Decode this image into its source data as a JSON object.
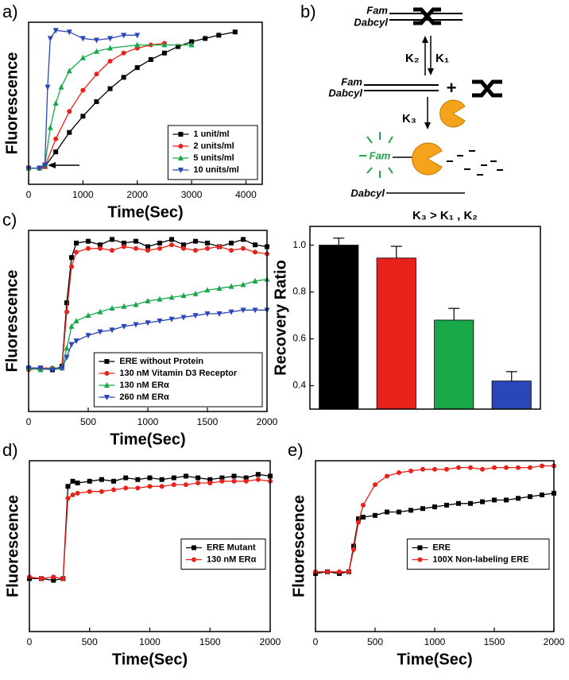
{
  "chart_data": [
    {
      "type": "line",
      "panel_label": "a)",
      "xlabel": "Time(Sec)",
      "ylabel": "Fluorescence",
      "xlim": [
        0,
        4300
      ],
      "xticks": [
        0,
        1000,
        2000,
        3000,
        4000
      ],
      "ylim": [
        0,
        1
      ],
      "legend": "lower right",
      "series": [
        {
          "name": "1 unit/ml",
          "color": "#000000",
          "marker": "square",
          "x": [
            0,
            200,
            300,
            500,
            750,
            1000,
            1250,
            1500,
            1750,
            2000,
            2250,
            2500,
            2750,
            3000,
            3250,
            3500,
            3800
          ],
          "values": [
            0.1,
            0.1,
            0.11,
            0.2,
            0.32,
            0.42,
            0.51,
            0.59,
            0.66,
            0.72,
            0.77,
            0.81,
            0.85,
            0.88,
            0.9,
            0.92,
            0.94
          ]
        },
        {
          "name": "2 units/ml",
          "color": "#e8221b",
          "marker": "circle",
          "x": [
            0,
            200,
            300,
            500,
            750,
            1000,
            1250,
            1500,
            1750,
            2000,
            2250,
            2500
          ],
          "values": [
            0.1,
            0.1,
            0.11,
            0.28,
            0.45,
            0.58,
            0.68,
            0.76,
            0.81,
            0.84,
            0.86,
            0.87
          ]
        },
        {
          "name": "5 units/ml",
          "color": "#18a84a",
          "marker": "triangle-up",
          "x": [
            0,
            200,
            300,
            400,
            500,
            600,
            750,
            1000,
            1250,
            1500,
            2000,
            2500,
            3000
          ],
          "values": [
            0.1,
            0.1,
            0.12,
            0.35,
            0.5,
            0.6,
            0.7,
            0.78,
            0.82,
            0.84,
            0.86,
            0.86,
            0.86
          ]
        },
        {
          "name": "10 units/ml",
          "color": "#2a46b8",
          "marker": "triangle-down",
          "x": [
            0,
            200,
            300,
            350,
            400,
            500,
            750,
            1000,
            1250,
            1500,
            1750,
            2000
          ],
          "values": [
            0.1,
            0.1,
            0.12,
            0.6,
            0.9,
            0.95,
            0.94,
            0.9,
            0.89,
            0.9,
            0.92,
            0.92
          ]
        }
      ]
    },
    {
      "type": "line",
      "panel_label": "c)",
      "xlabel": "Time(Sec)",
      "ylabel": "Fluorescence",
      "xlim": [
        0,
        2000
      ],
      "xticks": [
        0,
        500,
        1000,
        1500,
        2000
      ],
      "ylim": [
        0,
        1
      ],
      "legend": "lower right",
      "x": [
        0,
        100,
        200,
        280,
        320,
        360,
        400,
        500,
        600,
        700,
        800,
        900,
        1000,
        1100,
        1200,
        1300,
        1400,
        1500,
        1600,
        1700,
        1800,
        1900,
        2000
      ],
      "series": [
        {
          "name": "ERE without Protein",
          "color": "#000000",
          "marker": "square",
          "values": [
            0.24,
            0.24,
            0.23,
            0.25,
            0.6,
            0.85,
            0.93,
            0.94,
            0.92,
            0.95,
            0.93,
            0.94,
            0.91,
            0.93,
            0.95,
            0.92,
            0.94,
            0.93,
            0.91,
            0.93,
            0.95,
            0.92,
            0.91
          ]
        },
        {
          "name": "130 nM Vitamin D3 Receptor",
          "color": "#e8221b",
          "marker": "circle",
          "values": [
            0.23,
            0.24,
            0.24,
            0.24,
            0.55,
            0.8,
            0.88,
            0.9,
            0.9,
            0.89,
            0.91,
            0.9,
            0.89,
            0.9,
            0.92,
            0.9,
            0.89,
            0.9,
            0.91,
            0.89,
            0.9,
            0.88,
            0.87
          ]
        },
        {
          "name": "130 nM ERα",
          "color": "#18a84a",
          "marker": "triangle-up",
          "values": [
            0.24,
            0.23,
            0.24,
            0.24,
            0.35,
            0.47,
            0.5,
            0.53,
            0.55,
            0.57,
            0.58,
            0.59,
            0.61,
            0.62,
            0.63,
            0.64,
            0.65,
            0.67,
            0.68,
            0.69,
            0.7,
            0.72,
            0.73
          ]
        },
        {
          "name": "260 nM ERα",
          "color": "#2a46b8",
          "marker": "triangle-down",
          "values": [
            0.24,
            0.24,
            0.23,
            0.24,
            0.3,
            0.37,
            0.39,
            0.42,
            0.44,
            0.45,
            0.47,
            0.48,
            0.49,
            0.5,
            0.51,
            0.52,
            0.53,
            0.54,
            0.54,
            0.55,
            0.56,
            0.56,
            0.56
          ]
        }
      ]
    },
    {
      "type": "bar",
      "ylabel": "Recovery Ratio",
      "ylim": [
        0.3,
        1.08
      ],
      "yticks": [
        {
          "value": 0.4,
          "label": "0.4"
        },
        {
          "value": 0.6,
          "label": "0.6"
        },
        {
          "value": 0.8,
          "label": "0.8"
        },
        {
          "value": 1.0,
          "label": "1.0"
        }
      ],
      "categories": [
        null,
        null,
        null,
        null
      ],
      "values": [
        1.0,
        0.945,
        0.68,
        0.42
      ],
      "errors": [
        0.03,
        0.05,
        0.05,
        0.04
      ],
      "colors": [
        "#000000",
        "#e8221b",
        "#18a84a",
        "#2a46b8"
      ]
    },
    {
      "type": "line",
      "panel_label": "d)",
      "xlabel": "Time(Sec)",
      "ylabel": "Fluorescence",
      "xlim": [
        0,
        2000
      ],
      "xticks": [
        0,
        500,
        1000,
        1500,
        2000
      ],
      "ylim": [
        0,
        1
      ],
      "legend": "center right",
      "x": [
        0,
        100,
        200,
        280,
        320,
        360,
        400,
        500,
        600,
        700,
        800,
        900,
        1000,
        1100,
        1200,
        1300,
        1400,
        1500,
        1600,
        1700,
        1800,
        1900,
        2000
      ],
      "series": [
        {
          "name": "ERE Mutant",
          "color": "#000000",
          "marker": "square",
          "values": [
            0.31,
            0.31,
            0.3,
            0.31,
            0.85,
            0.88,
            0.87,
            0.88,
            0.89,
            0.88,
            0.9,
            0.89,
            0.9,
            0.89,
            0.9,
            0.91,
            0.9,
            0.89,
            0.9,
            0.91,
            0.9,
            0.92,
            0.91
          ]
        },
        {
          "name": "130 nM ERα",
          "color": "#e8221b",
          "marker": "circle",
          "values": [
            0.32,
            0.31,
            0.32,
            0.31,
            0.78,
            0.8,
            0.81,
            0.82,
            0.82,
            0.83,
            0.84,
            0.84,
            0.85,
            0.85,
            0.86,
            0.86,
            0.87,
            0.87,
            0.88,
            0.88,
            0.88,
            0.89,
            0.88
          ]
        }
      ]
    },
    {
      "type": "line",
      "panel_label": "e)",
      "xlabel": "Time(Sec)",
      "ylabel": "Fluorescence",
      "xlim": [
        0,
        2000
      ],
      "xticks": [
        0,
        500,
        1000,
        1500,
        2000
      ],
      "ylim": [
        0,
        1
      ],
      "legend": "center right",
      "x": [
        0,
        100,
        200,
        280,
        320,
        360,
        400,
        500,
        600,
        700,
        800,
        900,
        1000,
        1100,
        1200,
        1300,
        1400,
        1500,
        1600,
        1700,
        1800,
        1900,
        2000
      ],
      "series": [
        {
          "name": "ERE",
          "color": "#000000",
          "marker": "square",
          "values": [
            0.34,
            0.35,
            0.34,
            0.35,
            0.5,
            0.66,
            0.67,
            0.68,
            0.7,
            0.7,
            0.71,
            0.72,
            0.73,
            0.74,
            0.75,
            0.75,
            0.76,
            0.77,
            0.77,
            0.78,
            0.79,
            0.8,
            0.81
          ]
        },
        {
          "name": "100X Non-labeling ERE",
          "color": "#e8221b",
          "marker": "circle",
          "values": [
            0.35,
            0.35,
            0.35,
            0.35,
            0.48,
            0.64,
            0.74,
            0.86,
            0.91,
            0.93,
            0.94,
            0.95,
            0.95,
            0.95,
            0.96,
            0.96,
            0.95,
            0.96,
            0.96,
            0.96,
            0.96,
            0.97,
            0.97
          ]
        }
      ]
    }
  ],
  "diagram": {
    "panel_label": "b)",
    "fam": [
      "Fam",
      "Fam",
      "Fam"
    ],
    "dabcyl": [
      "Dabcyl",
      "Dabcyl",
      "Dabcyl"
    ],
    "k2": "K₂",
    "k1": "K₁",
    "k3": "K₃",
    "plus": "+",
    "relation": "K₃  > K₁ , K₂"
  }
}
